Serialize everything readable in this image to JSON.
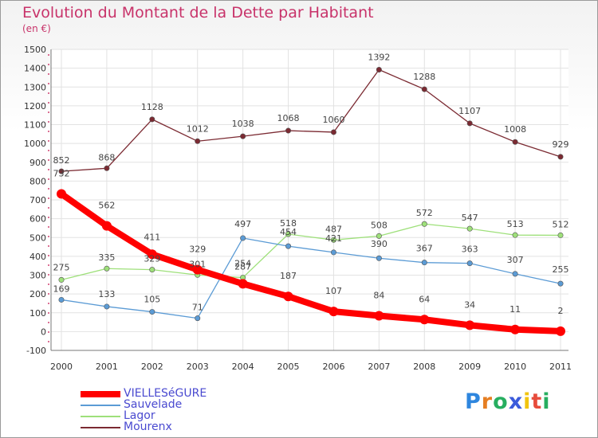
{
  "chart_data": {
    "type": "line",
    "title": "Evolution du Montant de la Dette par Habitant",
    "subtitle": "(en €)",
    "categories": [
      "2000",
      "2001",
      "2002",
      "2003",
      "2004",
      "2005",
      "2006",
      "2007",
      "2008",
      "2009",
      "2010",
      "2011"
    ],
    "ylim": [
      -100,
      1500
    ],
    "yticks": [
      "-100",
      "0",
      "100",
      "200",
      "300",
      "400",
      "500",
      "600",
      "700",
      "800",
      "900",
      "1000",
      "1100",
      "1200",
      "1300",
      "1400",
      "1500"
    ],
    "grid": true,
    "legend": "bottom-left",
    "series": [
      {
        "name": "VIELLESéGURE",
        "color": "#ff0000",
        "values": [
          732,
          562,
          411,
          329,
          254,
          187,
          107,
          84,
          64,
          34,
          11,
          2
        ],
        "labels": [
          "732",
          "562",
          "411",
          "329",
          "254",
          "187",
          "107",
          "84",
          "64",
          "34",
          "11",
          "2"
        ]
      },
      {
        "name": "Sauvelade",
        "color": "#5b9bd5",
        "values": [
          169,
          133,
          105,
          71,
          497,
          454,
          421,
          390,
          367,
          363,
          307,
          255
        ],
        "labels": [
          "169",
          "133",
          "105",
          "71",
          "497",
          "454",
          "421",
          "390",
          "367",
          "363",
          "307",
          "255"
        ]
      },
      {
        "name": "Lagor",
        "color": "#9ee07a",
        "values": [
          275,
          335,
          329,
          301,
          287,
          518,
          487,
          508,
          572,
          547,
          513,
          512
        ],
        "labels": [
          "275",
          "335",
          "329",
          "301",
          "287",
          "518",
          "487",
          "508",
          "572",
          "547",
          "513",
          "512"
        ]
      },
      {
        "name": "Mourenx",
        "color": "#7b2a32",
        "values": [
          852,
          868,
          1128,
          1012,
          1038,
          1068,
          1060,
          1392,
          1288,
          1107,
          1008,
          929
        ],
        "labels": [
          "852",
          "868",
          "1128",
          "1012",
          "1038",
          "1068",
          "1060",
          "1392",
          "1288",
          "1107",
          "1008",
          "929"
        ]
      }
    ]
  },
  "logo": {
    "letters": [
      "P",
      "r",
      "o",
      "x",
      "i",
      "t",
      "i"
    ],
    "colors": [
      "#2e86de",
      "#e67e22",
      "#27ae60",
      "#3b5bdb",
      "#f1c40f",
      "#e74c3c",
      "#27ae60"
    ]
  }
}
